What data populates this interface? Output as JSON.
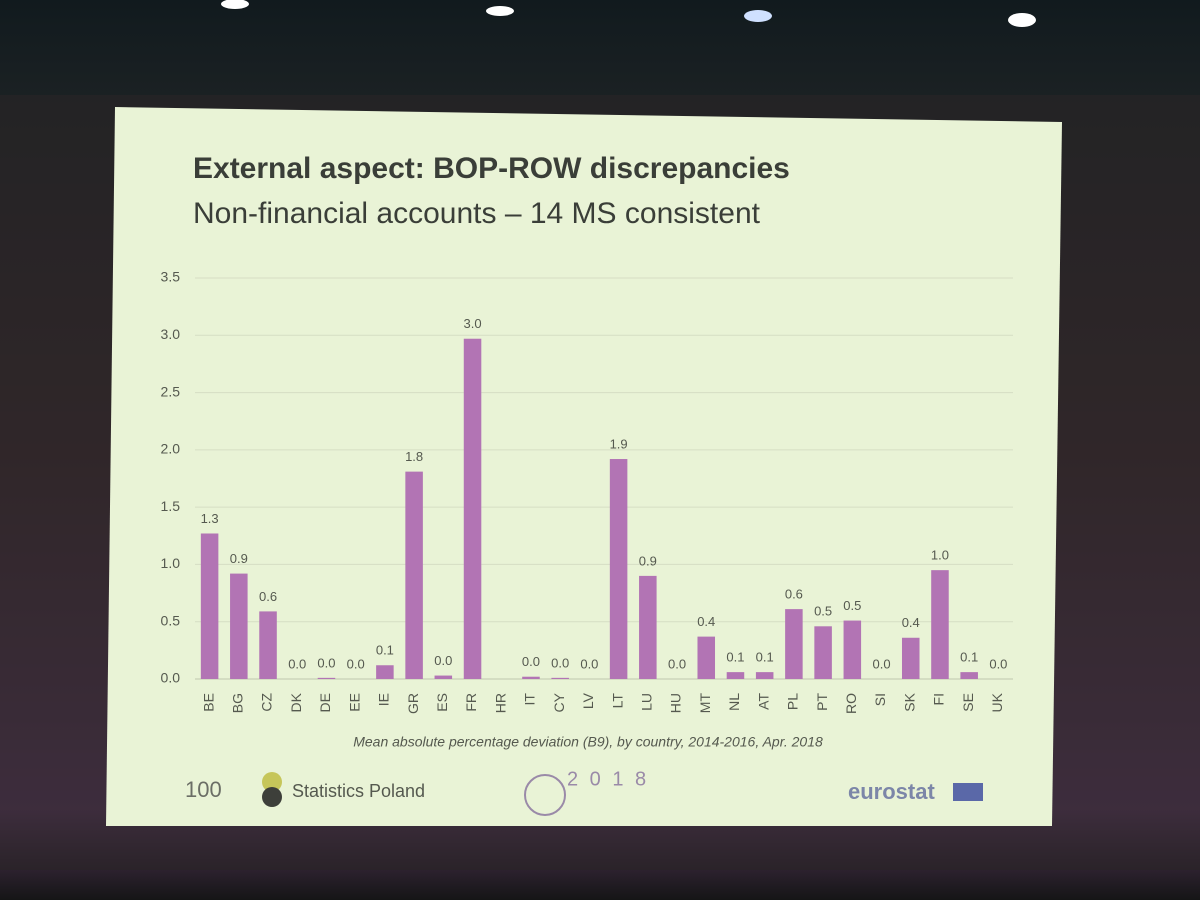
{
  "chart_data": {
    "type": "bar",
    "title": "External aspect: BOP-ROW discrepancies",
    "subtitle": "Non-financial accounts – 14 MS consistent",
    "caption": "Mean absolute percentage deviation (B9), by country, 2014-2016, Apr. 2018",
    "logos": [
      "100",
      "Statistics Poland",
      "2 0 1 8",
      "eurostat"
    ],
    "categories": [
      "BE",
      "BG",
      "CZ",
      "DK",
      "DE",
      "EE",
      "IE",
      "GR",
      "ES",
      "FR",
      "HR",
      "IT",
      "CY",
      "LV",
      "LT",
      "LU",
      "HU",
      "MT",
      "NL",
      "AT",
      "PL",
      "PT",
      "RO",
      "SI",
      "SK",
      "FI",
      "SE",
      "UK"
    ],
    "values": [
      1.27,
      0.92,
      0.59,
      0,
      0.01,
      0,
      0.12,
      1.81,
      0.03,
      2.97,
      null,
      0.02,
      0.01,
      0,
      1.92,
      0.9,
      0,
      0.37,
      0.06,
      0.06,
      0.61,
      0.46,
      0.51,
      0,
      0.36,
      0.95,
      0.06,
      0
    ],
    "value_labels": [
      "1.3",
      "0.9",
      "0.6",
      "0.0",
      "0.0",
      "0.0",
      "0.1",
      "1.8",
      "0.0",
      "3.0",
      null,
      "0.0",
      "0.0",
      "0.0",
      "1.9",
      "0.9",
      "0.0",
      "0.4",
      "0.1",
      "0.1",
      "0.6",
      "0.5",
      "0.5",
      "0.0",
      "0.4",
      "1.0",
      "0.1",
      "0.0"
    ],
    "color": "#b274b4",
    "ylim": [
      0,
      3.5
    ],
    "yticks": [
      {
        "value": 0,
        "label": "0.0"
      },
      0.5,
      {
        "value": 1,
        "label": "1.0"
      },
      1.5,
      {
        "value": 2,
        "label": "2.0"
      },
      2.5,
      {
        "value": 3,
        "label": "3.0"
      },
      3.5
    ],
    "grid": true
  }
}
